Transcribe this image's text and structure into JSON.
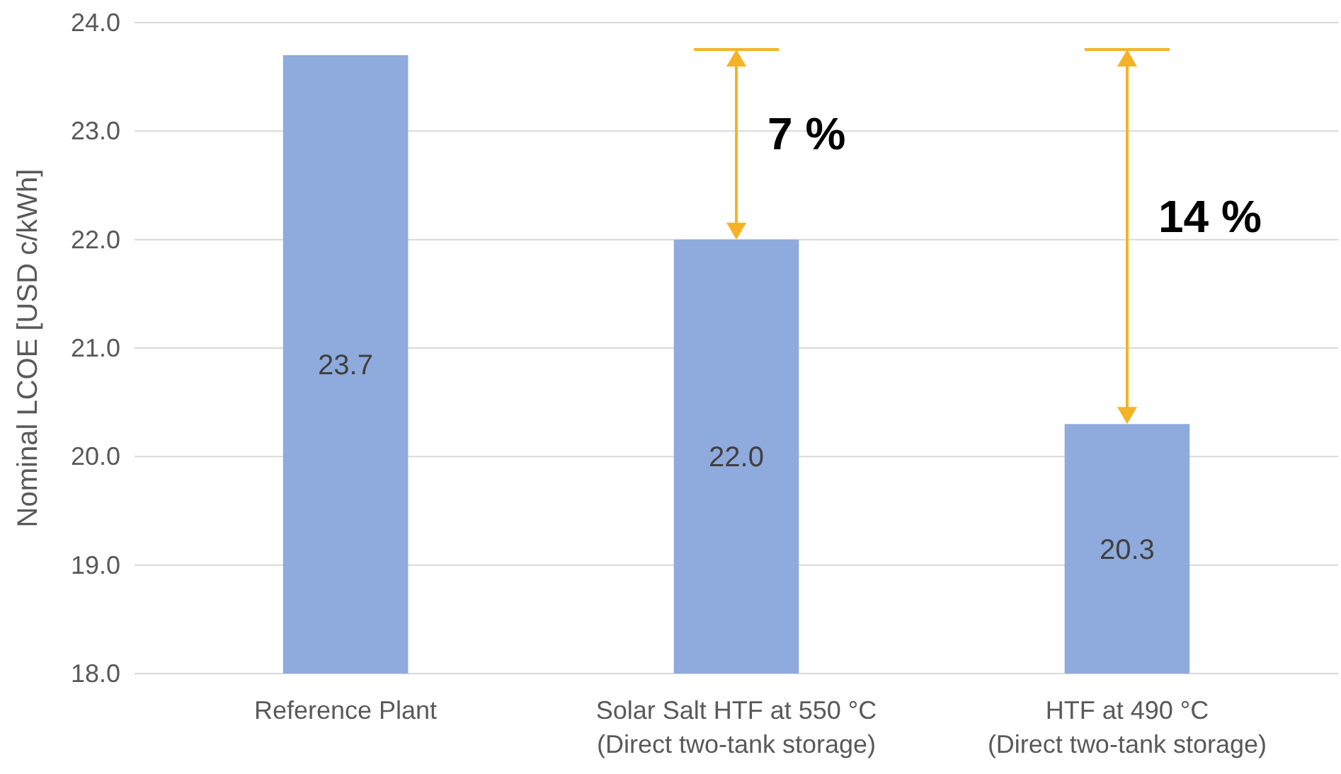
{
  "chart_data": {
    "type": "bar",
    "ylabel": "Nominal LCOE [USD c/kWh]",
    "categories": [
      "Reference Plant",
      "Solar Salt HTF at 550 °C\n(Direct two-tank storage)",
      "HTF at 490 °C\n(Direct two-tank storage)"
    ],
    "values": [
      23.7,
      22.0,
      20.3
    ],
    "value_labels": [
      "23.7",
      "22.0",
      "20.3"
    ],
    "color": "#8faadc",
    "ylim": [
      18,
      24
    ],
    "yticks": [
      {
        "value": 18,
        "label": "18.0"
      },
      {
        "value": 19,
        "label": "19.0"
      },
      {
        "value": 20,
        "label": "20.0"
      },
      {
        "value": 21,
        "label": "21.0"
      },
      {
        "value": 22,
        "label": "22.0"
      },
      {
        "value": 23,
        "label": "23.0"
      },
      {
        "value": 24,
        "label": "24.0"
      }
    ],
    "grid": "y",
    "annotations": [
      "7 %",
      "14 %"
    ]
  }
}
